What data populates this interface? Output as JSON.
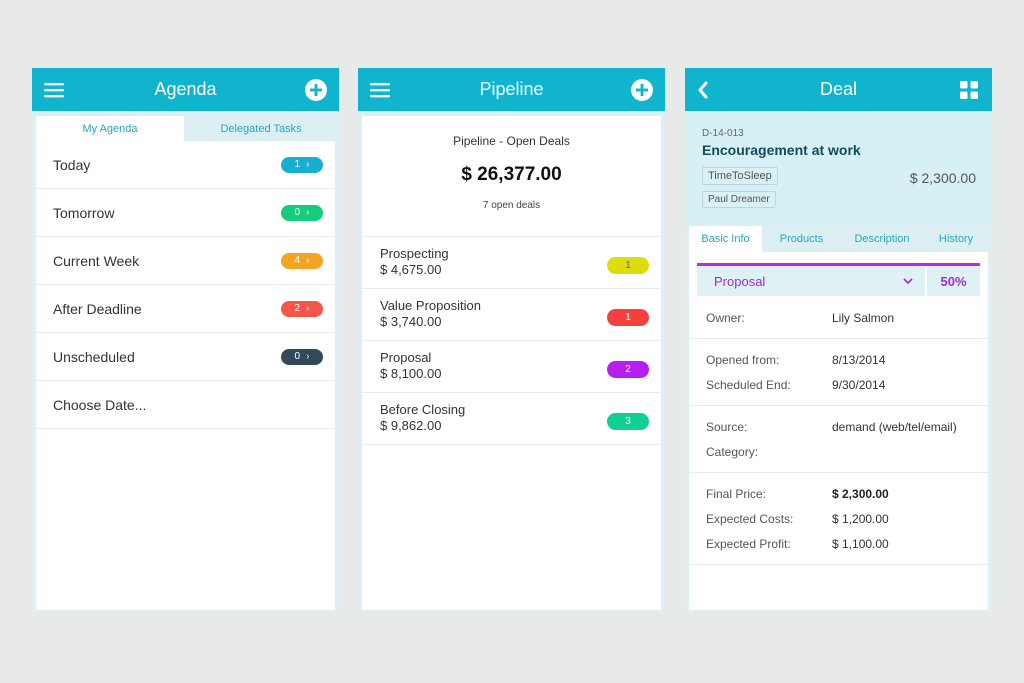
{
  "agenda": {
    "title": "Agenda",
    "tabs": [
      {
        "label": "My Agenda"
      },
      {
        "label": "Delegated Tasks"
      }
    ],
    "rows": [
      {
        "label": "Today",
        "count": "1",
        "color": "#18aece"
      },
      {
        "label": "Tomorrow",
        "count": "0",
        "color": "#15cd7c"
      },
      {
        "label": "Current Week",
        "count": "4",
        "color": "#f4a423"
      },
      {
        "label": "After Deadline",
        "count": "2",
        "color": "#f4564a"
      },
      {
        "label": "Unscheduled",
        "count": "0",
        "color": "#32495a"
      },
      {
        "label": "Choose Date..."
      }
    ],
    "menu_icon": "hamburger-icon",
    "add_icon": "plus-circle-icon"
  },
  "pipeline": {
    "title": "Pipeline",
    "header_title": "Pipeline - Open Deals",
    "total": "$ 26,377.00",
    "count_text": "7 open deals",
    "stages": [
      {
        "name": "Prospecting",
        "amount": "$ 4,675.00",
        "count": "1",
        "color": "#dcdc0e",
        "text_color": "#666"
      },
      {
        "name": "Value Proposition",
        "amount": "$ 3,740.00",
        "count": "1",
        "color": "#f4413f",
        "text_color": "#fff"
      },
      {
        "name": "Proposal",
        "amount": "$ 8,100.00",
        "count": "2",
        "color": "#b71ff0",
        "text_color": "#fff"
      },
      {
        "name": "Before Closing",
        "amount": "$ 9,862.00",
        "count": "3",
        "color": "#0fcf94",
        "text_color": "#fff"
      }
    ]
  },
  "deal": {
    "title": "Deal",
    "id": "D-14-013",
    "name": "Encouragement at work",
    "tag1": "TimeToSleep",
    "tag2": "Paul Dreamer",
    "price": "$ 2,300.00",
    "tabs": [
      "Basic Info",
      "Products",
      "Description",
      "History"
    ],
    "stage": "Proposal",
    "probability": "50%",
    "owner_label": "Owner:",
    "owner": "Lily Salmon",
    "opened_label": "Opened from:",
    "opened": "8/13/2014",
    "sched_label": "Scheduled End:",
    "sched": "9/30/2014",
    "source_label": "Source:",
    "source": "demand (web/tel/email)",
    "category_label": "Category:",
    "final_price_label": "Final Price:",
    "final_price": "$ 2,300.00",
    "costs_label": "Expected Costs:",
    "costs": "$ 1,200.00",
    "profit_label": "Expected Profit:",
    "profit": "$ 1,100.00",
    "accent": "#b72de6"
  }
}
